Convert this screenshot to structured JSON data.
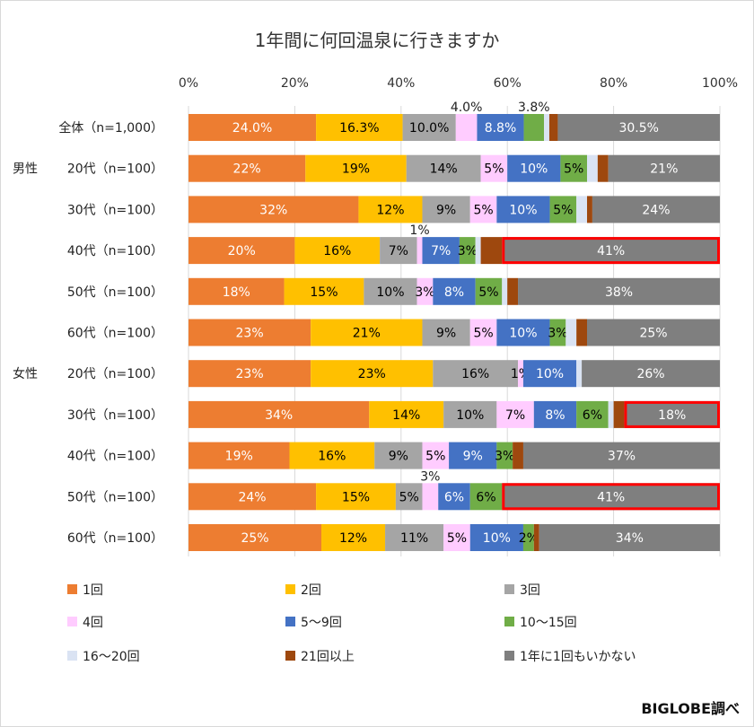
{
  "chart_data": {
    "type": "bar",
    "orientation": "horizontal",
    "stacked": true,
    "title": "1年間に何回温泉に行きますか",
    "xlim": [
      0,
      100
    ],
    "x_ticks": [
      "0%",
      "20%",
      "40%",
      "60%",
      "80%",
      "100%"
    ],
    "grid": true,
    "legend_position": "bottom",
    "credit": "BIGLOBE調べ",
    "series": [
      {
        "name": "1回",
        "color": "#ED7D31",
        "text_color": "#ffffff"
      },
      {
        "name": "2回",
        "color": "#FFC000",
        "text_color": "#000000"
      },
      {
        "name": "3回",
        "color": "#A5A5A5",
        "text_color": "#000000"
      },
      {
        "name": "4回",
        "color": "#FFCCFF",
        "text_color": "#000000"
      },
      {
        "name": "5～9回",
        "color": "#4472C4",
        "text_color": "#ffffff"
      },
      {
        "name": "10～15回",
        "color": "#70AD47",
        "text_color": "#000000"
      },
      {
        "name": "16～20回",
        "color": "#DAE3F3",
        "text_color": "#000000"
      },
      {
        "name": "21回以上",
        "color": "#9E480E",
        "text_color": "#ffffff"
      },
      {
        "name": "1年に1回もいかない",
        "color": "#7F7F7F",
        "text_color": "#ffffff"
      }
    ],
    "highlight_color": "#FF0000",
    "rows": [
      {
        "group": "",
        "label": "全体（n=1,000）",
        "values": [
          24.0,
          16.3,
          10.0,
          4.0,
          8.8,
          3.8,
          1.0,
          1.6,
          30.5
        ],
        "labels": [
          "24.0%",
          "16.3%",
          "10.0%",
          "4.0%",
          "8.8%",
          "3.8%",
          "",
          "",
          "30.5%"
        ],
        "highlight_last": false
      },
      {
        "group": "男性",
        "label": "20代（n=100）",
        "values": [
          22,
          19,
          14,
          5,
          10,
          5,
          2,
          2,
          21
        ],
        "labels": [
          "22%",
          "19%",
          "14%",
          "5%",
          "10%",
          "5%",
          "",
          "",
          "21%"
        ],
        "highlight_last": false
      },
      {
        "group": "",
        "label": "30代（n=100）",
        "values": [
          32,
          12,
          9,
          5,
          10,
          5,
          2,
          1,
          24
        ],
        "labels": [
          "32%",
          "12%",
          "9%",
          "5%",
          "10%",
          "5%",
          "",
          "",
          "24%"
        ],
        "highlight_last": false
      },
      {
        "group": "",
        "label": "40代（n=100）",
        "values": [
          20,
          16,
          7,
          1,
          7,
          3,
          1,
          4,
          41
        ],
        "labels": [
          "20%",
          "16%",
          "7%",
          "1%",
          "7%",
          "3%",
          "",
          "",
          "41%"
        ],
        "highlight_last": true
      },
      {
        "group": "",
        "label": "50代（n=100）",
        "values": [
          18,
          15,
          10,
          3,
          8,
          5,
          1,
          2,
          38
        ],
        "labels": [
          "18%",
          "15%",
          "10%",
          "3%",
          "8%",
          "5%",
          "",
          "",
          "38%"
        ],
        "highlight_last": false
      },
      {
        "group": "",
        "label": "60代（n=100）",
        "values": [
          23,
          21,
          9,
          5,
          10,
          3,
          2,
          2,
          25
        ],
        "labels": [
          "23%",
          "21%",
          "9%",
          "5%",
          "10%",
          "3%",
          "",
          "",
          "25%"
        ],
        "highlight_last": false
      },
      {
        "group": "女性",
        "label": "20代（n=100）",
        "values": [
          23,
          23,
          16,
          1,
          10,
          0,
          1,
          0,
          26
        ],
        "labels": [
          "23%",
          "23%",
          "16%",
          "1%",
          "10%",
          "",
          "",
          "",
          "26%"
        ],
        "highlight_last": false
      },
      {
        "group": "",
        "label": "30代（n=100）",
        "values": [
          34,
          14,
          10,
          7,
          8,
          6,
          1,
          2,
          18
        ],
        "labels": [
          "34%",
          "14%",
          "10%",
          "7%",
          "8%",
          "6%",
          "",
          "",
          "18%"
        ],
        "highlight_last": true
      },
      {
        "group": "",
        "label": "40代（n=100）",
        "values": [
          19,
          16,
          9,
          5,
          9,
          3,
          0,
          2,
          37
        ],
        "labels": [
          "19%",
          "16%",
          "9%",
          "5%",
          "9%",
          "3%",
          "",
          "",
          "37%"
        ],
        "highlight_last": false
      },
      {
        "group": "",
        "label": "50代（n=100）",
        "values": [
          24,
          15,
          5,
          3,
          6,
          6,
          0,
          0,
          41
        ],
        "labels": [
          "24%",
          "15%",
          "5%",
          "3%",
          "6%",
          "6%",
          "",
          "",
          "41%"
        ],
        "highlight_last": true
      },
      {
        "group": "",
        "label": "60代（n=100）",
        "values": [
          25,
          12,
          11,
          5,
          10,
          2,
          0,
          1,
          34
        ],
        "labels": [
          "25%",
          "12%",
          "11%",
          "5%",
          "10%",
          "2%",
          "",
          "",
          "34%"
        ],
        "highlight_last": false
      }
    ]
  }
}
